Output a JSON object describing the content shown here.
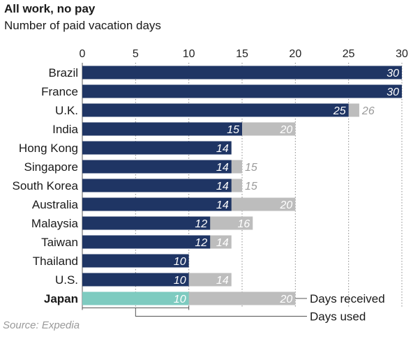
{
  "header": {
    "title": "All work, no pay",
    "subtitle": "Number of paid vacation days"
  },
  "footer": {
    "source": "Source: Expedia"
  },
  "colors": {
    "used": "#1f3564",
    "received": "#bdbdbd",
    "highlight": "#7ecbc0",
    "text": "#222222",
    "grid": "#888888"
  },
  "chart_data": {
    "type": "bar",
    "orientation": "horizontal",
    "stacked": "overlay",
    "xlim": [
      0,
      30
    ],
    "xticks": [
      "0",
      "5",
      "10",
      "15",
      "20",
      "25",
      "30"
    ],
    "grid": "dotted vertical",
    "categories": [
      "Brazil",
      "France",
      "U.K.",
      "India",
      "Hong Kong",
      "Singapore",
      "South Korea",
      "Australia",
      "Malaysia",
      "Taiwan",
      "Thailand",
      "U.S.",
      "Japan"
    ],
    "highlight_category": "Japan",
    "series": [
      {
        "key": "used",
        "values": [
          30,
          30,
          25,
          15,
          14,
          14,
          14,
          14,
          12,
          12,
          10,
          10,
          10
        ]
      },
      {
        "key": "received",
        "values": [
          30,
          30,
          26,
          20,
          14,
          15,
          15,
          20,
          16,
          14,
          10,
          14,
          20
        ]
      }
    ],
    "annotations": [
      {
        "text": "Days received"
      },
      {
        "text": "Days used"
      }
    ]
  }
}
